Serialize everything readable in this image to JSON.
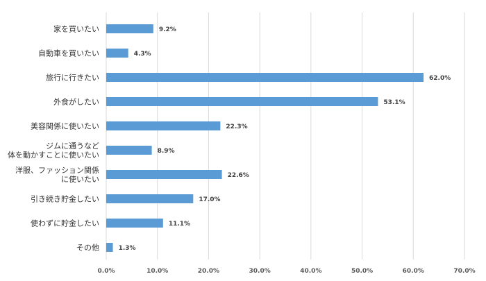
{
  "chart_data": {
    "type": "bar",
    "orientation": "horizontal",
    "categories": [
      [
        "家を買いたい"
      ],
      [
        "自動車を買いたい"
      ],
      [
        "旅行に行きたい"
      ],
      [
        "外食がしたい"
      ],
      [
        "美容関係に使いたい"
      ],
      [
        "ジムに通うなど",
        "体を動かすことに使いたい"
      ],
      [
        "洋服、ファッション関係",
        "に使いたい"
      ],
      [
        "引き続き貯金したい"
      ],
      [
        "使わずに貯金したい"
      ],
      [
        "その他"
      ]
    ],
    "values": [
      9.2,
      4.3,
      62.0,
      53.1,
      22.3,
      8.9,
      22.6,
      17.0,
      11.1,
      1.3
    ],
    "value_labels": [
      "9.2%",
      "4.3%",
      "62.0%",
      "53.1%",
      "22.3%",
      "8.9%",
      "22.6%",
      "17.0%",
      "11.1%",
      "1.3%"
    ],
    "x_ticks": [
      "0.0%",
      "10.0%",
      "20.0%",
      "30.0%",
      "40.0%",
      "50.0%",
      "60.0%",
      "70.0%"
    ],
    "xlim": [
      0,
      70
    ],
    "grid": "vertical",
    "legend": "none",
    "bar_color": "#5b9bd5",
    "grid_color": "#d9d9d9",
    "title": "",
    "xlabel": "",
    "ylabel": ""
  }
}
